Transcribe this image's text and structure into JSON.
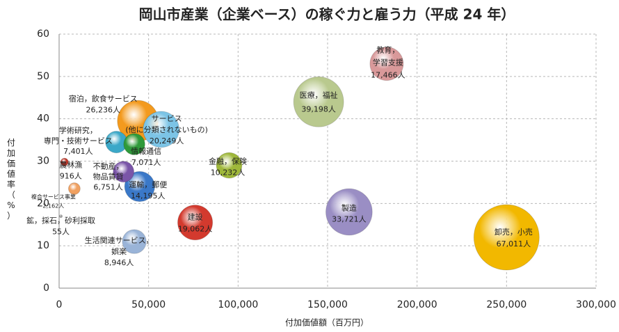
{
  "chart_data": {
    "type": "bubble",
    "title": "岡山市産業（企業ベース）の稼ぐ力と雇う力（平成 24 年）",
    "x_label": "付加価値額（百万円）",
    "y_label": "付加価値率（%）",
    "names": [
      [
        "卸売，小売"
      ],
      [
        "製造"
      ],
      [
        "医療，福祉"
      ],
      [
        "教育，",
        "学習支援"
      ],
      [
        "金融，保険"
      ],
      [
        "建設"
      ],
      [
        "宿泊，飲食サービス"
      ],
      [
        "サービス",
        "(他に分類されないもの)"
      ],
      [
        "学術研究，",
        "専門・技術サービス"
      ],
      [
        "情報通信"
      ],
      [
        "不動産，",
        "物品賃貸"
      ],
      [
        "運輸，郵便"
      ],
      [
        "農林漁"
      ],
      [
        "複合サービス事業"
      ],
      [
        "鉱，採石，砂利採取"
      ],
      [
        "生活関連サービス，",
        "娯楽"
      ]
    ],
    "x": [
      250000,
      162000,
      145000,
      183000,
      95000,
      76000,
      44000,
      57000,
      32000,
      42000,
      36000,
      45000,
      3000,
      8500,
      1000,
      42000
    ],
    "values": [
      12,
      18,
      44,
      53,
      29,
      15.5,
      39.5,
      37.5,
      34.5,
      34,
      27.5,
      24,
      29.8,
      23.5,
      17,
      11
    ],
    "sizes": [
      67011,
      33721,
      39198,
      17466,
      10232,
      19062,
      26236,
      20249,
      7401,
      7071,
      6751,
      14195,
      916,
      2162,
      55,
      8946
    ],
    "size_labels": [
      "67,011人",
      "33,721人",
      "39,198人",
      "17,466人",
      "10,232人",
      "19,062人",
      "26,236人",
      "20,249人",
      "7,401人",
      "7,071人",
      "6,751人",
      "14,195人",
      "916人",
      "2,162人",
      "55人",
      "8,946人"
    ],
    "colors": [
      "#f2b800",
      "#9a8ec4",
      "#b9c98e",
      "#d9999a",
      "#9fb83a",
      "#d33a2e",
      "#f39a1e",
      "#7cc4e6",
      "#3ba8c8",
      "#2f9a3a",
      "#7a55a8",
      "#3a78c8",
      "#c0392b",
      "#f0a060",
      "#999999",
      "#9ab4d8"
    ],
    "xlim": [
      0,
      300000
    ],
    "xticks": [
      0,
      {
        "value": 50000,
        "label": "50,000"
      },
      {
        "value": 100000,
        "label": "100,000"
      },
      {
        "value": 150000,
        "label": "150,000"
      },
      {
        "value": 200000,
        "label": "200,000"
      },
      {
        "value": 250000,
        "label": "250,000"
      },
      {
        "value": 300000,
        "label": "300,000"
      }
    ],
    "ylim": [
      0,
      60
    ],
    "yticks": [
      0,
      10,
      20,
      30,
      40,
      50,
      60
    ],
    "grid": true
  }
}
